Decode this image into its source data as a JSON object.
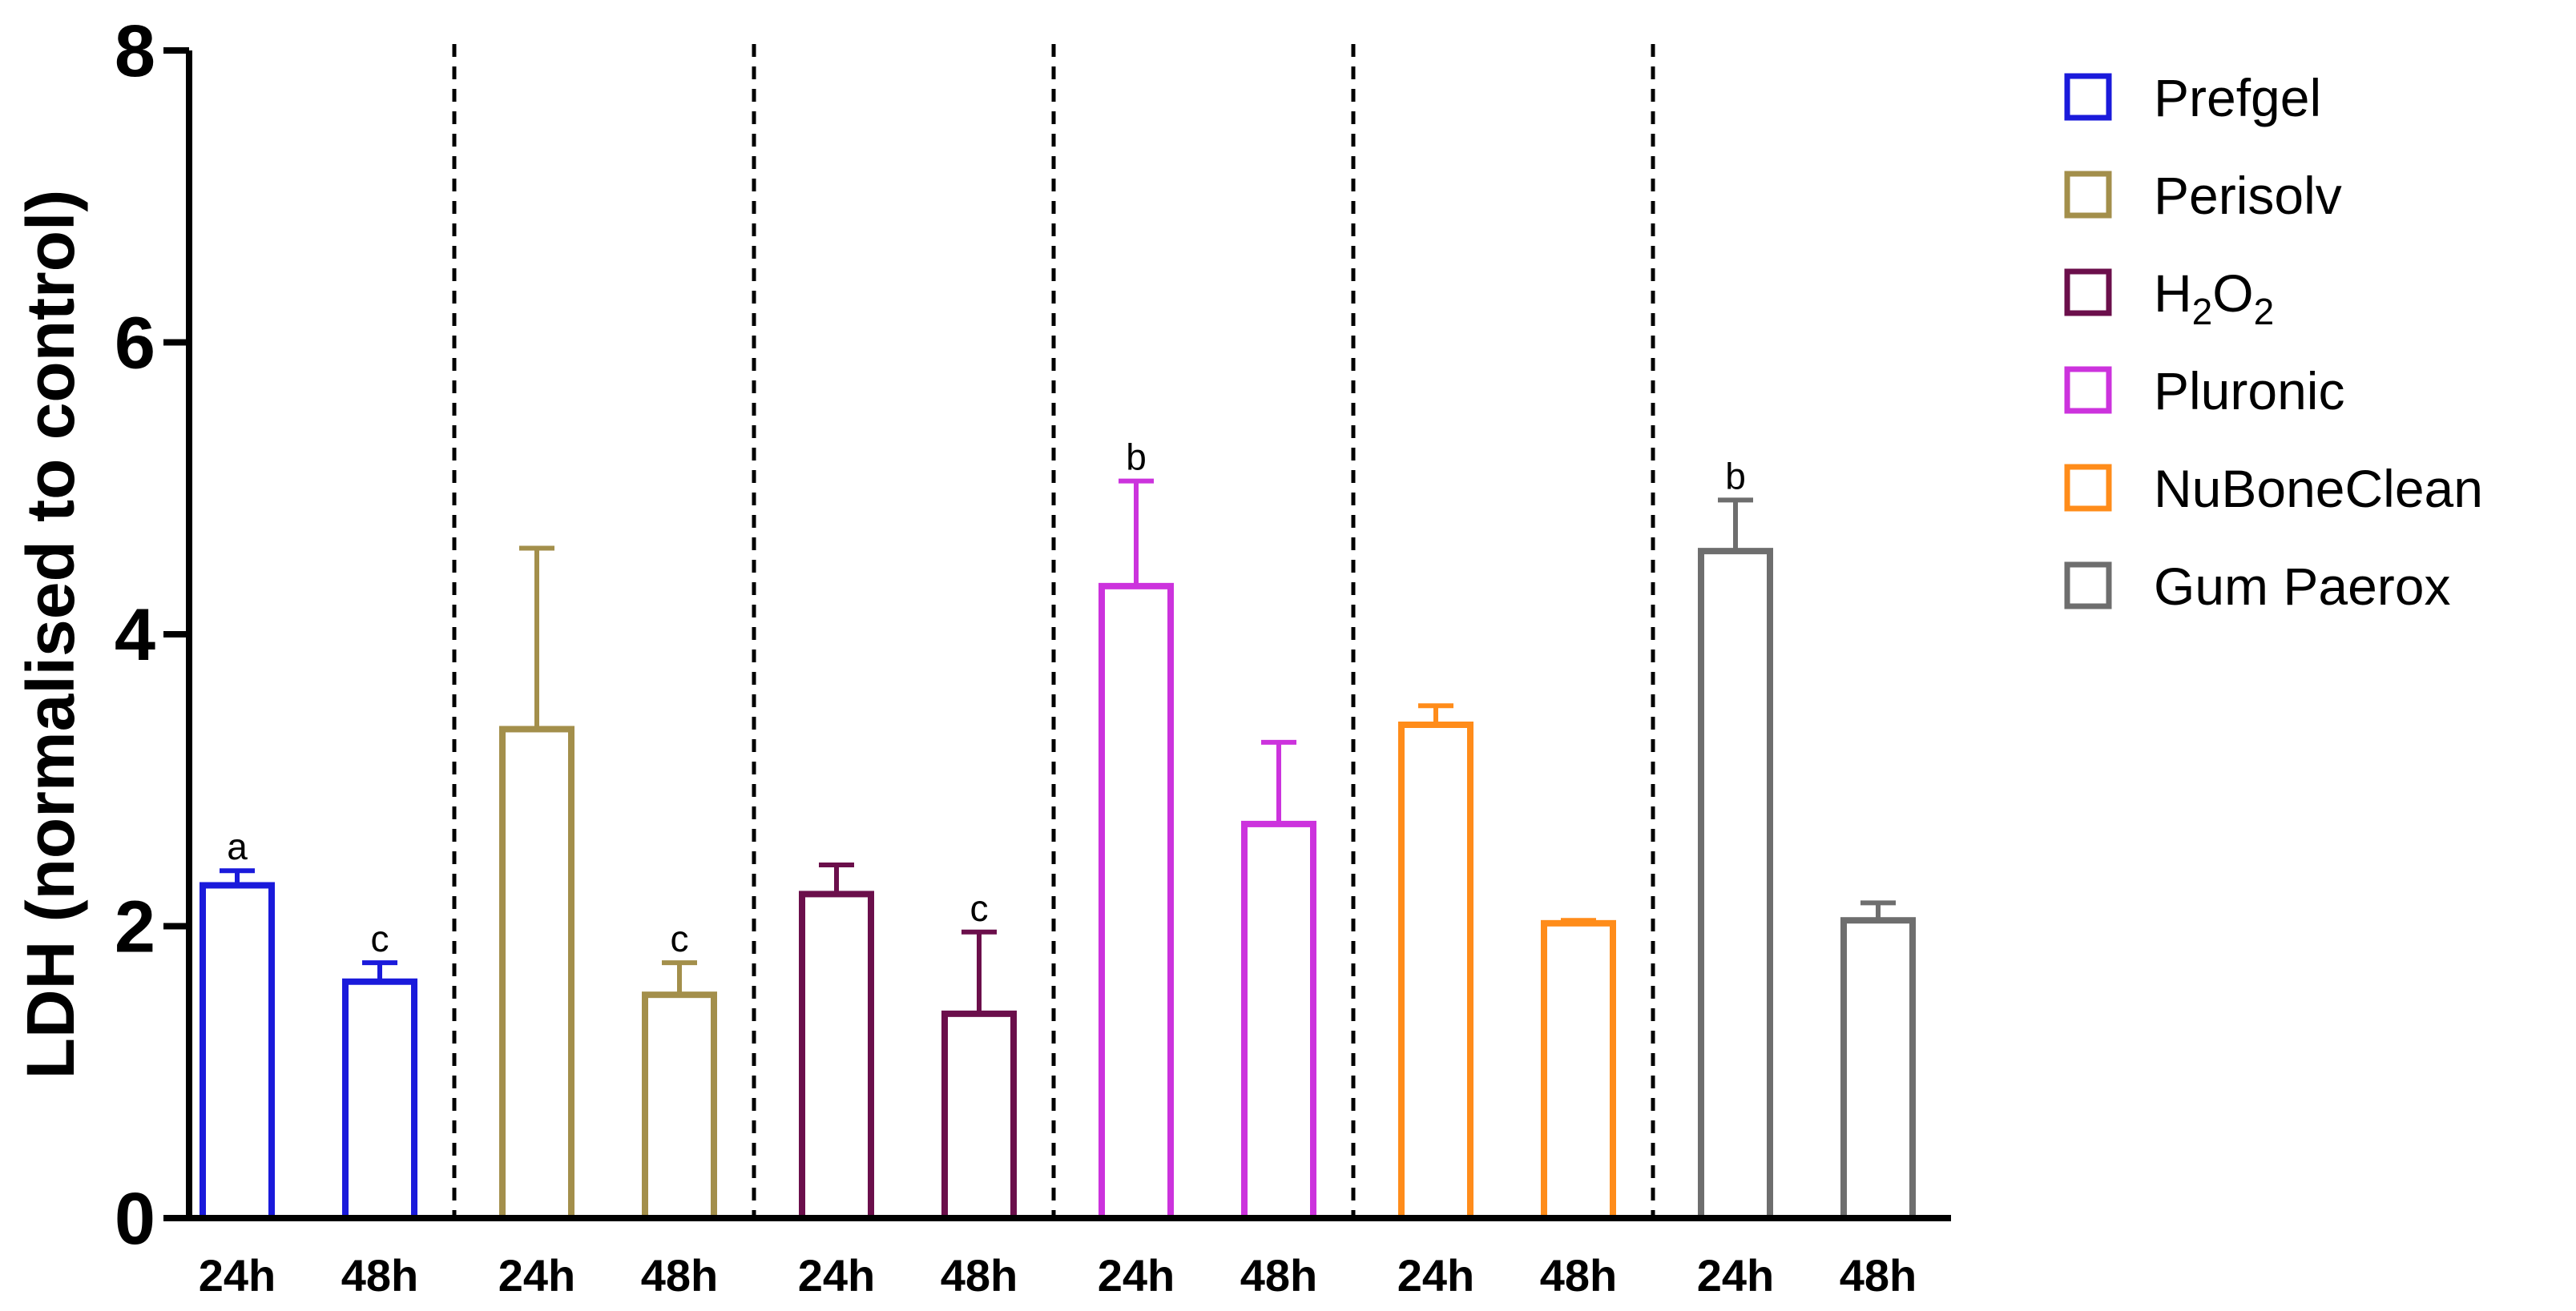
{
  "chart_data": {
    "type": "bar",
    "title": "",
    "xlabel": "",
    "ylabel": "LDH (normalised to control)",
    "ylim": [
      0,
      8
    ],
    "yticks": [
      "0",
      "2",
      "4",
      "6",
      "8"
    ],
    "grid": false,
    "legend_position": "right",
    "timepoints": [
      "24h",
      "48h"
    ],
    "groups": [
      {
        "name": "Prefgel",
        "color": "#1a1adb",
        "values": [
          2.28,
          1.62
        ],
        "errors": [
          0.1,
          0.13
        ],
        "annotations": [
          "a",
          "c"
        ]
      },
      {
        "name": "Perisolv",
        "color": "#a38f4b",
        "values": [
          3.35,
          1.53
        ],
        "errors": [
          1.24,
          0.22
        ],
        "annotations": [
          "",
          "c"
        ]
      },
      {
        "name": "H2O2",
        "legend": {
          "pre": "H",
          "sub1": "2",
          "mid": "O",
          "sub2": "2"
        },
        "color": "#6b0f4b",
        "values": [
          2.22,
          1.4
        ],
        "errors": [
          0.2,
          0.56
        ],
        "annotations": [
          "",
          "c"
        ]
      },
      {
        "name": "Pluronic",
        "color": "#cc33dd",
        "values": [
          4.33,
          2.7
        ],
        "errors": [
          0.72,
          0.56
        ],
        "annotations": [
          "b",
          ""
        ]
      },
      {
        "name": "NuBoneClean",
        "color": "#ff8c1a",
        "values": [
          3.38,
          2.02
        ],
        "errors": [
          0.13,
          0.02
        ],
        "annotations": [
          "",
          ""
        ]
      },
      {
        "name": "Gum Paerox",
        "color": "#6e6e6e",
        "values": [
          4.57,
          2.04
        ],
        "errors": [
          0.35,
          0.12
        ],
        "annotations": [
          "b",
          ""
        ]
      }
    ]
  }
}
